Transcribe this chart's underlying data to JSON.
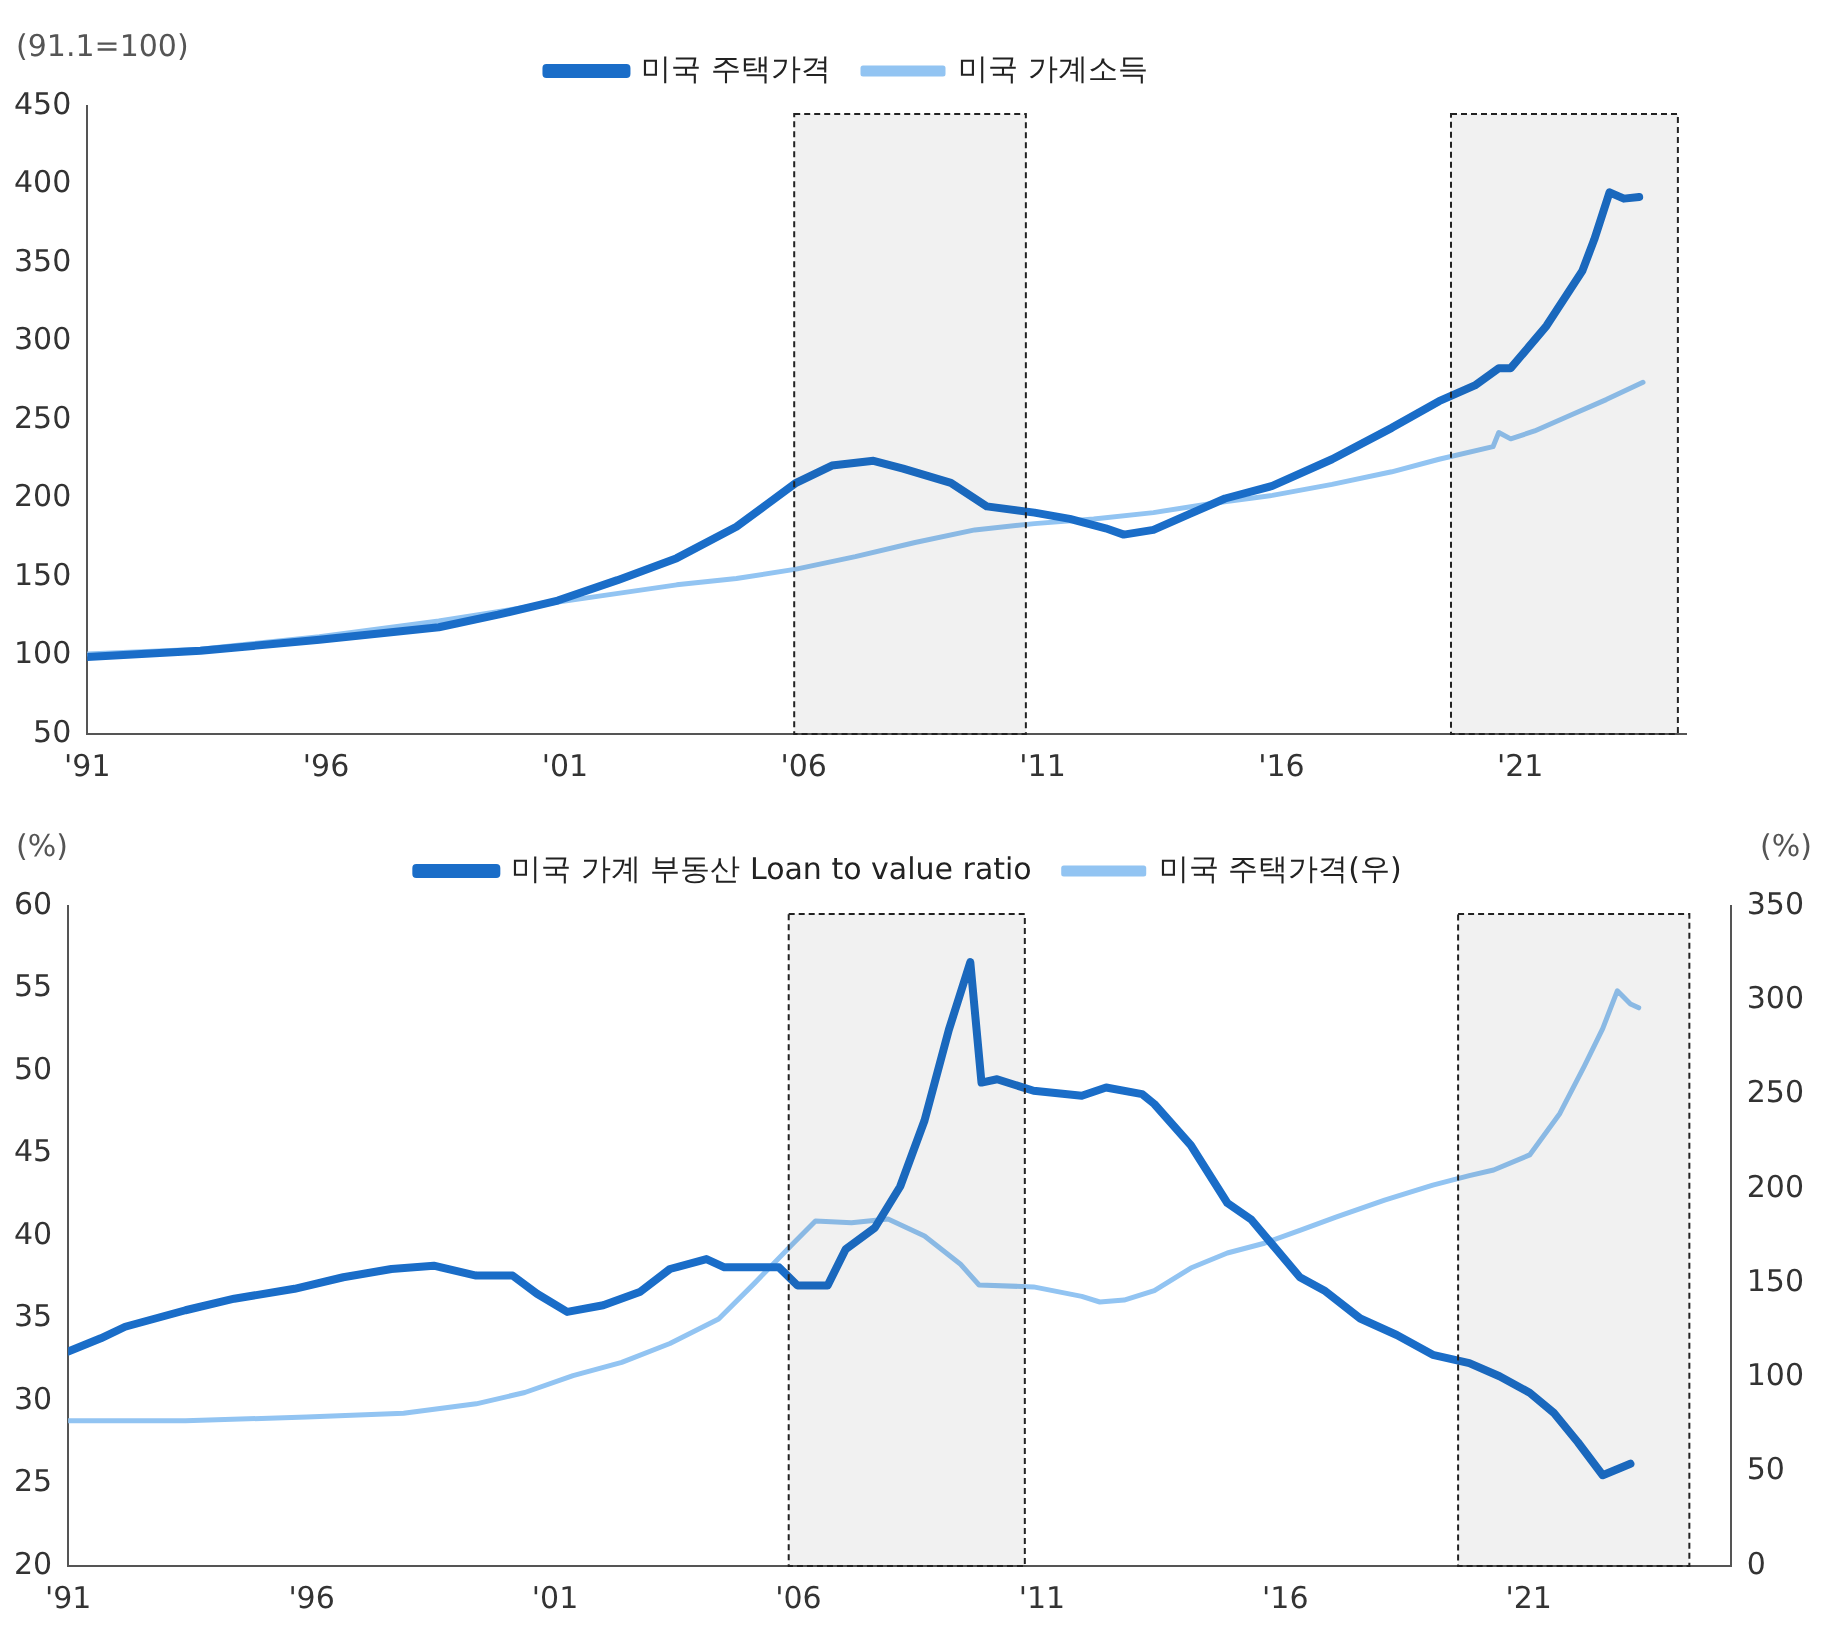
{
  "chart_data": [
    {
      "type": "line",
      "ylabel": "(91.1=100)",
      "legend": "top",
      "grid": false,
      "marker": "none",
      "line_style": "solid",
      "xlim": [
        1991,
        2024.47
      ],
      "xticks": [
        {
          "value": 1991,
          "label": "'91"
        },
        {
          "value": 1996,
          "label": "'96"
        },
        {
          "value": 2001,
          "label": "'01"
        },
        {
          "value": 2006,
          "label": "'06"
        },
        {
          "value": 2011,
          "label": "'11"
        },
        {
          "value": 2016,
          "label": "'16"
        },
        {
          "value": 2021,
          "label": "'21"
        }
      ],
      "ylim": [
        50,
        450
      ],
      "yticks": [
        50,
        100,
        150,
        200,
        250,
        300,
        350,
        400,
        450
      ],
      "bands": [
        {
          "axis": "x",
          "from": 2005.8,
          "to": 2010.65,
          "label": null
        },
        {
          "axis": "x",
          "from": 2019.55,
          "to": 2024.3,
          "label": null
        }
      ],
      "series": [
        {
          "name": "미국 주택가격",
          "color": "#1a6dc8",
          "x": [
            1991.0,
            1993.37,
            1995.86,
            1998.36,
            1999.6,
            2000.85,
            2002.1,
            2003.34,
            2004.59,
            2005.84,
            2006.59,
            2007.46,
            2008.08,
            2009.08,
            2009.83,
            2010.83,
            2011.57,
            2012.32,
            2012.7,
            2013.32,
            2014.07,
            2014.82,
            2015.81,
            2017.06,
            2018.31,
            2019.3,
            2020.05,
            2020.55,
            2020.8,
            2021.55,
            2022.3,
            2022.55,
            2022.87,
            2023.17,
            2023.49
          ],
          "values": [
            99,
            103,
            110,
            118,
            126,
            135,
            148,
            162,
            182,
            210,
            221,
            224,
            219,
            210,
            195,
            191,
            187,
            181,
            177,
            180,
            190,
            200,
            208,
            225,
            245,
            262,
            272,
            283,
            283,
            310,
            345,
            365,
            395,
            391,
            392
          ]
        },
        {
          "name": "미국 가계소득",
          "color": "#92c4f2",
          "x": [
            1991.0,
            1993.37,
            1995.86,
            1998.36,
            2000.85,
            2003.34,
            2004.59,
            2005.84,
            2007.08,
            2008.33,
            2009.58,
            2010.83,
            2012.07,
            2013.32,
            2014.57,
            2015.81,
            2017.06,
            2018.31,
            2019.3,
            2020.43,
            2020.55,
            2020.8,
            2021.3,
            2022.05,
            2022.8,
            2023.57
          ],
          "values": [
            101,
            104,
            112,
            122,
            134,
            145,
            149,
            155,
            163,
            172,
            180,
            184,
            187,
            191,
            197,
            202,
            209,
            217,
            225,
            233,
            242,
            238,
            243,
            253,
            263,
            274
          ]
        }
      ]
    },
    {
      "type": "line",
      "ylabel": "(%)",
      "y2label": "(%)",
      "legend": "top",
      "grid": false,
      "marker": "none",
      "line_style": "solid",
      "xlim": [
        1991,
        2025.15
      ],
      "xticks": [
        {
          "value": 1991,
          "label": "'91"
        },
        {
          "value": 1996,
          "label": "'96"
        },
        {
          "value": 2001,
          "label": "'01"
        },
        {
          "value": 2006,
          "label": "'06"
        },
        {
          "value": 2011,
          "label": "'11"
        },
        {
          "value": 2016,
          "label": "'16"
        },
        {
          "value": 2021,
          "label": "'21"
        }
      ],
      "ylim": [
        20,
        60
      ],
      "yticks": [
        20,
        25,
        30,
        35,
        40,
        45,
        50,
        55,
        60
      ],
      "y2lim": [
        0,
        350
      ],
      "y2ticks": [
        0,
        50,
        100,
        150,
        200,
        250,
        300,
        350
      ],
      "bands": [
        {
          "axis": "x",
          "from": 2005.8,
          "to": 2010.65,
          "label": null
        },
        {
          "axis": "x",
          "from": 2019.55,
          "to": 2024.3,
          "label": null
        }
      ],
      "series": [
        {
          "name": "미국 가계 부동산 Loan to value ratio",
          "color": "#1a6dc8",
          "x": [
            1991.0,
            1991.67,
            1992.17,
            1993.41,
            1994.41,
            1995.65,
            1996.65,
            1997.64,
            1998.51,
            1999.38,
            2000.13,
            2000.63,
            2001.25,
            2001.99,
            2002.74,
            2003.36,
            2004.11,
            2004.48,
            2005.6,
            2005.98,
            2006.6,
            2006.97,
            2007.57,
            2008.09,
            2008.59,
            2009.09,
            2009.53,
            2009.76,
            2010.08,
            2010.83,
            2011.82,
            2012.32,
            2013.06,
            2013.31,
            2014.06,
            2014.81,
            2015.3,
            2016.3,
            2016.8,
            2017.54,
            2018.29,
            2019.03,
            2019.78,
            2020.4,
            2021.02,
            2021.51,
            2022.01,
            2022.52,
            2023.09
          ],
          "values": [
            33,
            33.8,
            34.5,
            35.5,
            36.2,
            36.8,
            37.5,
            38.0,
            38.2,
            37.6,
            37.6,
            36.5,
            35.4,
            35.8,
            36.6,
            38.0,
            38.6,
            38.1,
            38.1,
            37.0,
            37.0,
            39.2,
            40.5,
            43,
            47,
            52.5,
            56.6,
            49.3,
            49.5,
            48.8,
            48.5,
            49.0,
            48.6,
            48.0,
            45.5,
            42,
            41,
            37.5,
            36.7,
            35,
            34,
            32.8,
            32.3,
            31.5,
            30.5,
            29.3,
            27.5,
            25.5,
            26.2
          ]
        },
        {
          "name": "미국 주택가격(우)",
          "color": "#92c4f2",
          "axis": "y2",
          "x": [
            1991.0,
            1993.41,
            1995.9,
            1997.89,
            1999.38,
            2000.38,
            2001.37,
            2002.37,
            2003.36,
            2004.36,
            2005.1,
            2005.85,
            2006.35,
            2007.09,
            2007.84,
            2008.59,
            2009.33,
            2009.71,
            2010.83,
            2011.82,
            2012.19,
            2012.69,
            2013.31,
            2014.06,
            2014.81,
            2015.55,
            2016.3,
            2017.04,
            2018.04,
            2019.03,
            2019.78,
            2020.28,
            2021.02,
            2021.64,
            2022.14,
            2022.52,
            2022.82,
            2023.09,
            2023.26
          ],
          "values": [
            77,
            77,
            79,
            81,
            86,
            92,
            101,
            108,
            118,
            131,
            150,
            170,
            183,
            182,
            184,
            175,
            160,
            149,
            148,
            143,
            140,
            141,
            146,
            158,
            166,
            171,
            178,
            185,
            194,
            202,
            207,
            210,
            218,
            240,
            265,
            285,
            305,
            298,
            296
          ]
        }
      ]
    }
  ]
}
